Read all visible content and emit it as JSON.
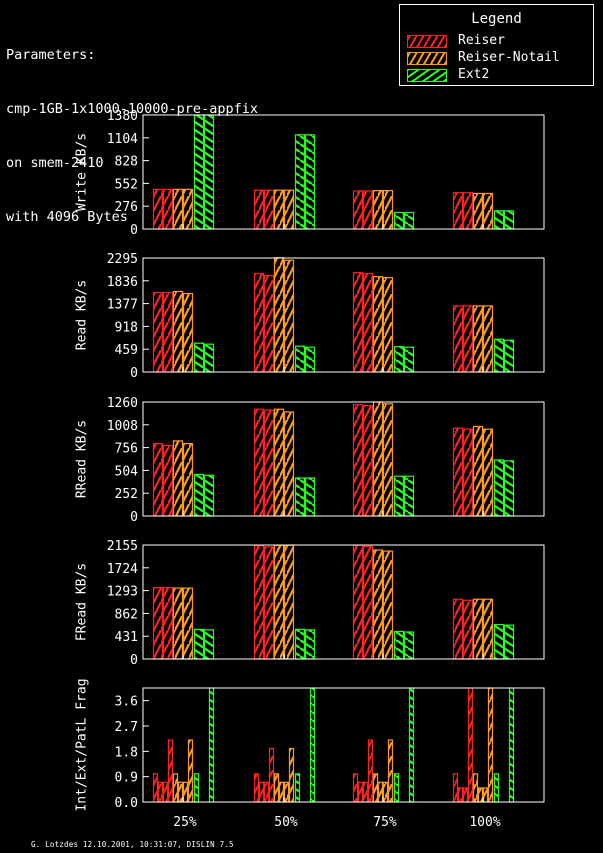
{
  "header": {
    "lines": [
      "Parameters:",
      "cmp-1GB-1x1000-10000-pre-appfix",
      "on smem-2410",
      "with 4096 Bytes"
    ]
  },
  "legend": {
    "title": "Legend",
    "items": [
      {
        "label": "Reiser",
        "color": "#ff2020"
      },
      {
        "label": "Reiser-Notail",
        "color": "#ff9a20"
      },
      {
        "label": "Ext2",
        "color": "#20ff20"
      }
    ]
  },
  "footer": "G. Lotzdes 12.10.2001, 10:31:07, DISLIN 7.5",
  "chart_data": [
    {
      "type": "bar",
      "ylabel": "Write KB/s",
      "categories": [
        "25%",
        "50%",
        "75%",
        "100%"
      ],
      "yticks": [
        "0",
        "276",
        "552",
        "828",
        "1104",
        "1380"
      ],
      "ylim": [
        0,
        1380
      ],
      "series": [
        {
          "name": "Reiser",
          "values": [
            [
              480,
              480
            ],
            [
              470,
              470
            ],
            [
              460,
              460
            ],
            [
              440,
              440
            ]
          ]
        },
        {
          "name": "Reiser-Notail",
          "values": [
            [
              480,
              480
            ],
            [
              470,
              470
            ],
            [
              465,
              465
            ],
            [
              430,
              430
            ]
          ]
        },
        {
          "name": "Ext2",
          "values": [
            [
              1380,
              1380
            ],
            [
              1140,
              1140
            ],
            [
              200,
              200
            ],
            [
              220,
              220
            ]
          ]
        }
      ]
    },
    {
      "type": "bar",
      "ylabel": "Read KB/s",
      "categories": [
        "25%",
        "50%",
        "75%",
        "100%"
      ],
      "yticks": [
        "0",
        "459",
        "918",
        "1377",
        "1836",
        "2295"
      ],
      "ylim": [
        0,
        2295
      ],
      "series": [
        {
          "name": "Reiser",
          "values": [
            [
              1600,
              1600
            ],
            [
              1980,
              1940
            ],
            [
              2000,
              1980
            ],
            [
              1330,
              1330
            ]
          ]
        },
        {
          "name": "Reiser-Notail",
          "values": [
            [
              1620,
              1580
            ],
            [
              2300,
              2250
            ],
            [
              1920,
              1900
            ],
            [
              1330,
              1330
            ]
          ]
        },
        {
          "name": "Ext2",
          "values": [
            [
              580,
              560
            ],
            [
              520,
              500
            ],
            [
              510,
              500
            ],
            [
              660,
              640
            ]
          ]
        }
      ]
    },
    {
      "type": "bar",
      "ylabel": "RRead KB/s",
      "categories": [
        "25%",
        "50%",
        "75%",
        "100%"
      ],
      "yticks": [
        "0",
        "252",
        "504",
        "756",
        "1008",
        "1260"
      ],
      "ylim": [
        0,
        1260
      ],
      "series": [
        {
          "name": "Reiser",
          "values": [
            [
              800,
              780
            ],
            [
              1180,
              1170
            ],
            [
              1230,
              1220
            ],
            [
              970,
              960
            ]
          ]
        },
        {
          "name": "Reiser-Notail",
          "values": [
            [
              830,
              800
            ],
            [
              1180,
              1150
            ],
            [
              1260,
              1240
            ],
            [
              990,
              960
            ]
          ]
        },
        {
          "name": "Ext2",
          "values": [
            [
              460,
              450
            ],
            [
              420,
              420
            ],
            [
              440,
              440
            ],
            [
              620,
              610
            ]
          ]
        }
      ]
    },
    {
      "type": "bar",
      "ylabel": "FRead KB/s",
      "categories": [
        "25%",
        "50%",
        "75%",
        "100%"
      ],
      "yticks": [
        "0",
        "431",
        "862",
        "1293",
        "1724",
        "2155"
      ],
      "ylim": [
        0,
        2155
      ],
      "series": [
        {
          "name": "Reiser",
          "values": [
            [
              1350,
              1350
            ],
            [
              2140,
              2120
            ],
            [
              2150,
              2130
            ],
            [
              1130,
              1110
            ]
          ]
        },
        {
          "name": "Reiser-Notail",
          "values": [
            [
              1340,
              1340
            ],
            [
              2150,
              2150
            ],
            [
              2060,
              2040
            ],
            [
              1130,
              1130
            ]
          ]
        },
        {
          "name": "Ext2",
          "values": [
            [
              560,
              550
            ],
            [
              560,
              550
            ],
            [
              520,
              510
            ],
            [
              650,
              640
            ]
          ]
        }
      ]
    },
    {
      "type": "bar",
      "ylabel": "Int/Ext/PatL Frag",
      "categories": [
        "25%",
        "50%",
        "75%",
        "100%"
      ],
      "yticks": [
        "0.0",
        "0.9",
        "1.8",
        "2.7",
        "3.6"
      ],
      "ylim": [
        0,
        4.05
      ],
      "series": [
        {
          "name": "Reiser",
          "values": [
            [
              1.0,
              0.7,
              0.7,
              2.2
            ],
            [
              1.0,
              0.7,
              0.7,
              1.9
            ],
            [
              1.0,
              0.7,
              0.7,
              2.2
            ],
            [
              1.0,
              0.5,
              0.5,
              4.05
            ]
          ]
        },
        {
          "name": "Reiser-Notail",
          "values": [
            [
              1.0,
              0.7,
              0.7,
              2.2
            ],
            [
              1.0,
              0.7,
              0.7,
              1.9
            ],
            [
              1.0,
              0.7,
              0.7,
              2.2
            ],
            [
              1.0,
              0.5,
              0.5,
              4.05
            ]
          ]
        },
        {
          "name": "Ext2",
          "values": [
            [
              1.0,
              0.0,
              0.0,
              4.05
            ],
            [
              1.0,
              0.0,
              0.0,
              4.05
            ],
            [
              1.0,
              0.0,
              0.0,
              4.05
            ],
            [
              1.0,
              0.0,
              0.0,
              4.05
            ]
          ]
        }
      ]
    }
  ]
}
